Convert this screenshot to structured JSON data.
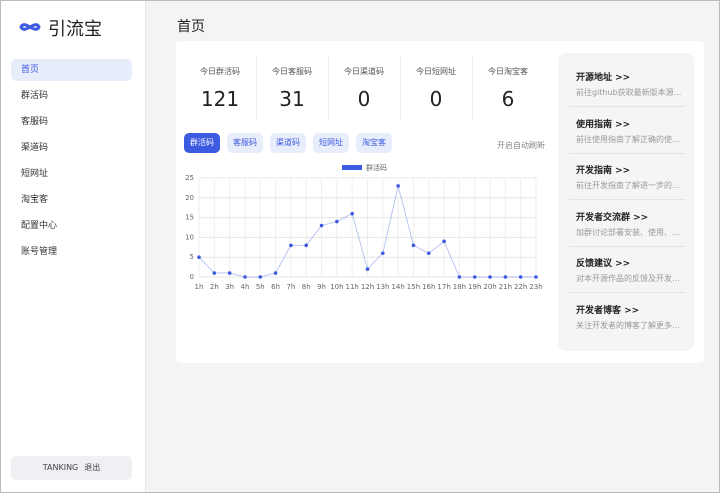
{
  "brand": "引流宝",
  "sidebar": {
    "menu": [
      "首页",
      "群活码",
      "客服码",
      "渠道码",
      "短网址",
      "淘宝客",
      "配置中心",
      "账号管理"
    ],
    "user": "TANKING",
    "logout": "退出"
  },
  "page_title": "首页",
  "stats": [
    {
      "label": "今日群活码",
      "value": 121
    },
    {
      "label": "今日客服码",
      "value": 31
    },
    {
      "label": "今日渠道码",
      "value": 0
    },
    {
      "label": "今日短网址",
      "value": 0
    },
    {
      "label": "今日淘宝客",
      "value": 6
    }
  ],
  "tabs": [
    "群活码",
    "客服码",
    "渠道码",
    "短网址",
    "淘宝客"
  ],
  "auto_refresh": "开启自动刷新",
  "chart_data": {
    "type": "line",
    "categories": [
      "1h",
      "2h",
      "3h",
      "4h",
      "5h",
      "6h",
      "7h",
      "8h",
      "9h",
      "10h",
      "11h",
      "12h",
      "13h",
      "14h",
      "15h",
      "16h",
      "17h",
      "18h",
      "19h",
      "20h",
      "21h",
      "22h",
      "23h"
    ],
    "series": [
      {
        "name": "群活码",
        "color": "#3d5be0",
        "values": [
          5,
          1,
          1,
          0,
          0,
          1,
          8,
          8,
          13,
          14,
          16,
          2,
          6,
          23,
          8,
          6,
          9,
          0,
          0,
          0,
          0,
          0,
          0
        ]
      }
    ],
    "ylim": [
      0,
      25
    ],
    "yticks": [
      0,
      5,
      10,
      15,
      20,
      25
    ],
    "grid": true
  },
  "links": [
    {
      "title": "开源地址 >>",
      "desc": "前往github获取最新版本源..."
    },
    {
      "title": "使用指南 >>",
      "desc": "前往使用指南了解正确的使..."
    },
    {
      "title": "开发指南 >>",
      "desc": "前往开发指南了解进一步的..."
    },
    {
      "title": "开发者交流群 >>",
      "desc": "加群讨论部署安装、使用、..."
    },
    {
      "title": "反馈建议 >>",
      "desc": "对本开源作品的反馈及开发..."
    },
    {
      "title": "开发者博客 >>",
      "desc": "关注开发者的博客了解更多..."
    }
  ]
}
